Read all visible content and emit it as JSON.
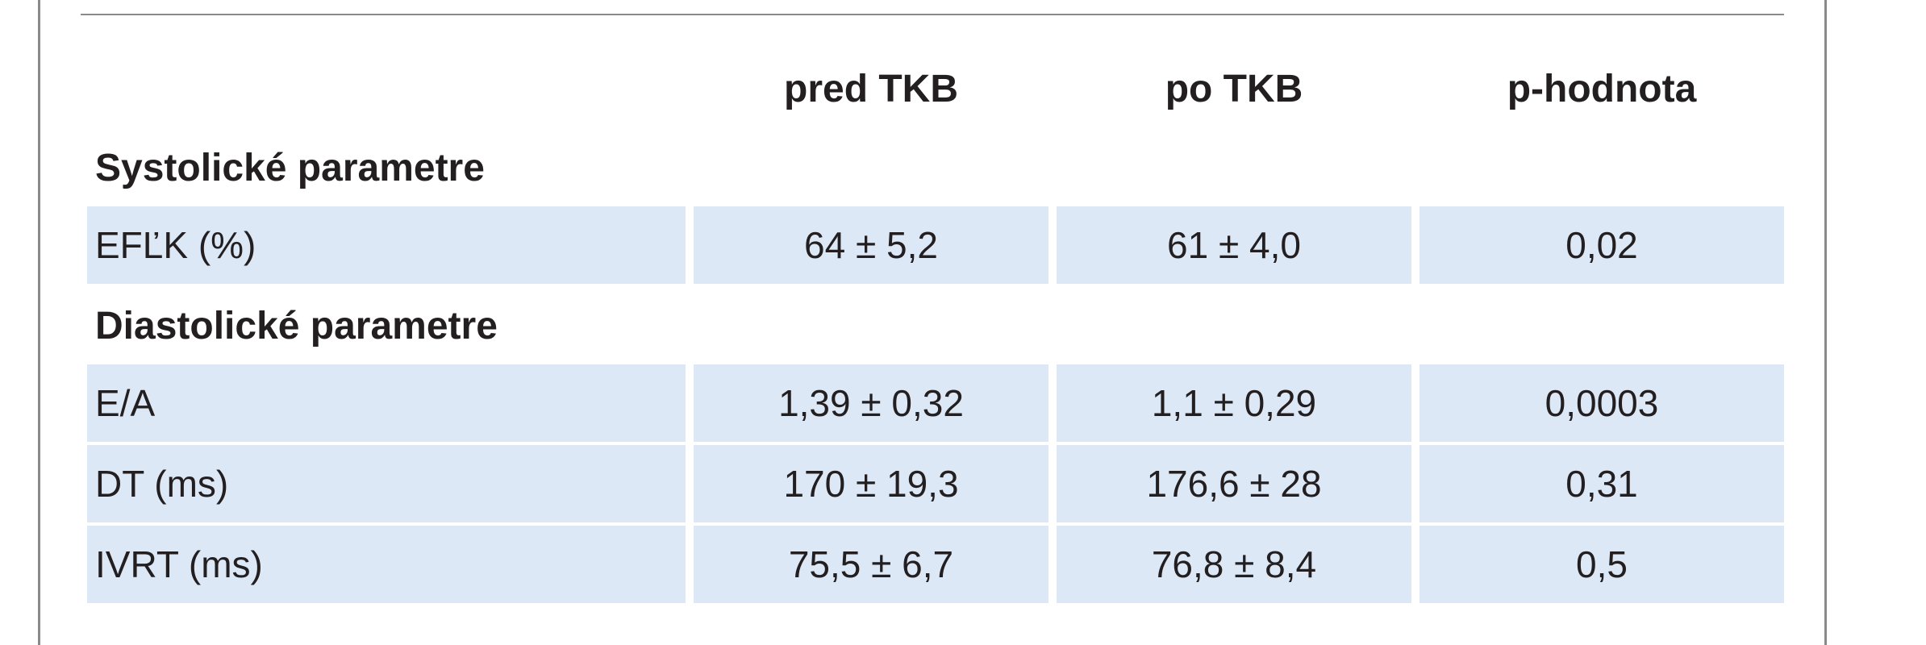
{
  "table": {
    "headers": [
      "",
      "pred TKB",
      "po TKB",
      "p-hodnota"
    ],
    "sections": [
      {
        "title": "Systolické parametre",
        "rows": [
          {
            "label": "EFĽK (%)",
            "pred": "64 ± 5,2",
            "po": "61 ± 4,0",
            "p": "0,02"
          }
        ]
      },
      {
        "title": "Diastolické parametre",
        "rows": [
          {
            "label": "E/A",
            "pred": "1,39 ± 0,32",
            "po": "1,1 ± 0,29",
            "p": "0,0003"
          },
          {
            "label": "DT (ms)",
            "pred": "170 ± 19,3",
            "po": "176,6 ± 28",
            "p": "0,31"
          },
          {
            "label": "IVRT (ms)",
            "pred": "75,5 ± 6,7",
            "po": "76,8 ± 8,4",
            "p": "0,5"
          }
        ]
      }
    ]
  },
  "colors": {
    "row_shading": "#dde8f6",
    "frame": "#8a8a8a",
    "text": "#231f20"
  }
}
